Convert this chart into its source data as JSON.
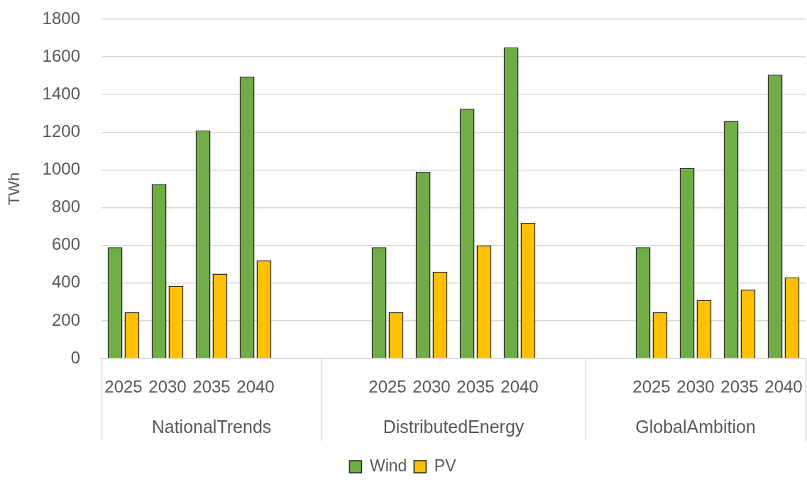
{
  "chart_data": {
    "type": "bar",
    "ylabel": "TWh",
    "categories": [
      "2025",
      "2030",
      "2035",
      "2040",
      null,
      null,
      "2025",
      "2030",
      "2035",
      "2040",
      null,
      null,
      "2025",
      "2030",
      "2035",
      "2040"
    ],
    "series": [
      {
        "name": "Wind",
        "color": "#70ad47",
        "values": [
          590,
          925,
          1210,
          1495,
          null,
          null,
          590,
          990,
          1325,
          1650,
          null,
          null,
          590,
          1010,
          1260,
          1505
        ]
      },
      {
        "name": "PV",
        "color": "#ffc000",
        "values": [
          245,
          385,
          450,
          520,
          null,
          null,
          245,
          460,
          600,
          720,
          null,
          null,
          245,
          310,
          365,
          430
        ]
      }
    ],
    "annotations": [
      "NationalTrends",
      "DistributedEnergy",
      "GlobalAmbition"
    ],
    "ylim": [
      0,
      1800
    ],
    "yticks": [
      0,
      200,
      400,
      600,
      800,
      1000,
      1200,
      1400,
      1600,
      1800
    ],
    "grid": "y",
    "legend": "bottom"
  }
}
